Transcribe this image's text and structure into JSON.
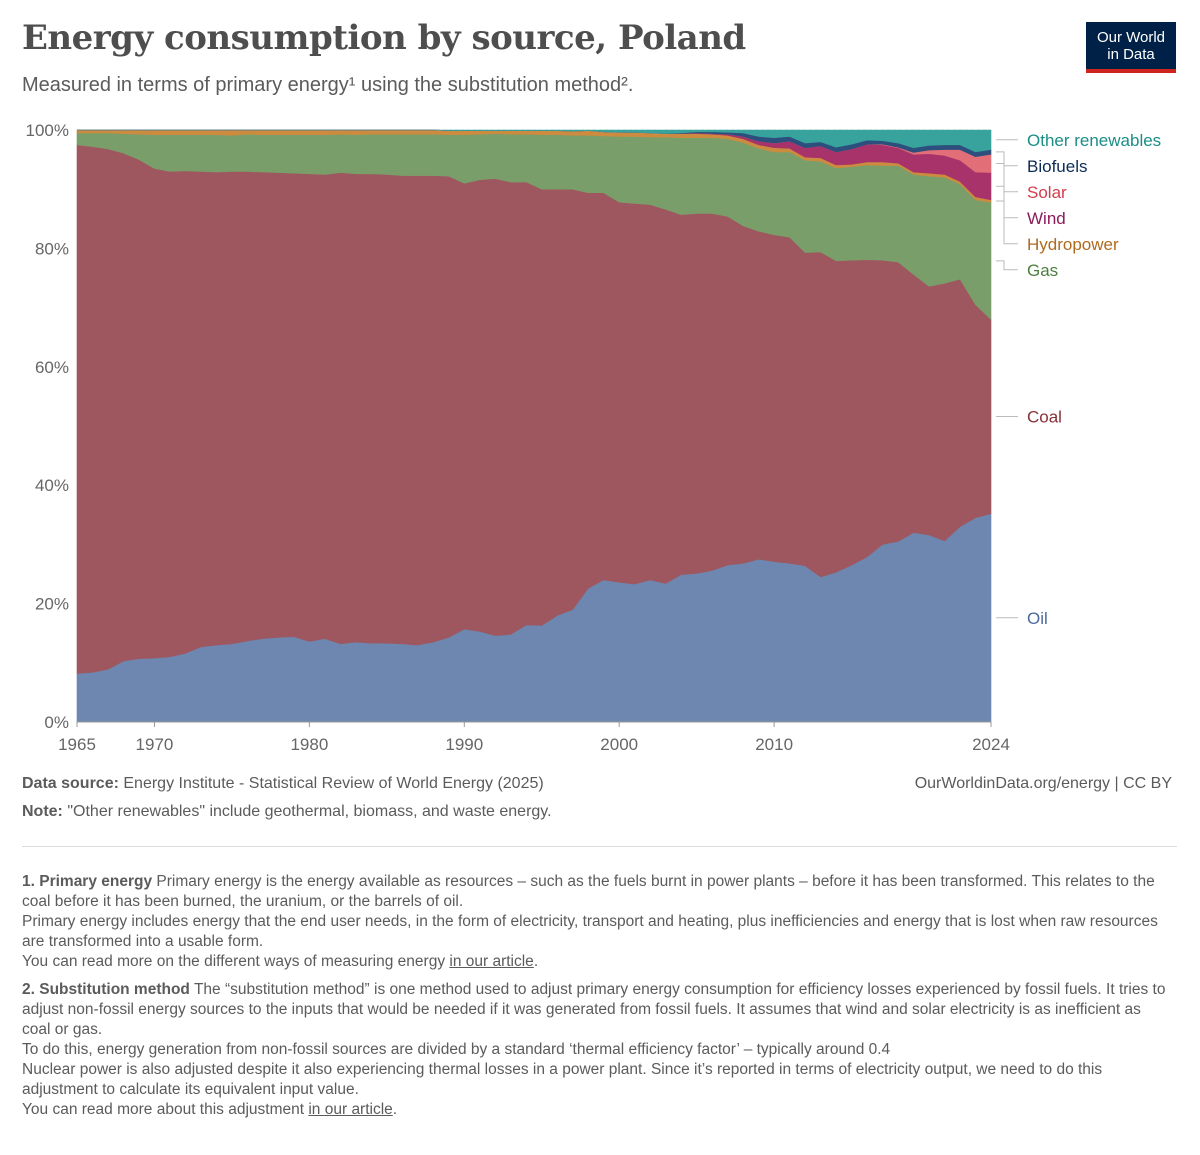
{
  "header": {
    "title": "Energy consumption by source, Poland",
    "subtitle": "Measured in terms of primary energy¹ using the substitution method².",
    "logo_line1": "Our World",
    "logo_line2": "in Data"
  },
  "footer": {
    "source_label": "Data source:",
    "source_text": "Energy Institute - Statistical Review of World Energy (2025)",
    "url_text": "OurWorldinData.org/energy | CC BY",
    "note_label": "Note:",
    "note_text": "\"Other renewables\" include geothermal, biomass, and waste energy."
  },
  "footnotes": {
    "fn1": {
      "head": "1. Primary energy",
      "lead": "Primary energy is the energy available as resources – such as the fuels burnt in power plants – before it has been transformed. This relates to the coal before it has been burned, the uranium, or the barrels of oil.",
      "line2": "Primary energy includes energy that the end user needs, in the form of electricity, transport and heating, plus inefficiencies and energy that is lost when raw resources are transformed into a usable form.",
      "line3_pre": "You can read more on the different ways of measuring energy ",
      "line3_link": "in our article",
      "line3_post": "."
    },
    "fn2": {
      "head": "2. Substitution method",
      "lead": "The “substitution method” is one method used to adjust primary energy consumption for efficiency losses experienced by fossil fuels. It tries to adjust non-fossil energy sources to the inputs that would be needed if it was generated from fossil fuels. It assumes that wind and solar electricity is as inefficient as coal or gas.",
      "line2": "To do this, energy generation from non-fossil sources are divided by a standard ‘thermal efficiency factor’ – typically around 0.4",
      "line3": "Nuclear power is also adjusted despite it also experiencing thermal losses in a power plant. Since it’s reported in terms of electricity output, we need to do this adjustment to calculate its equivalent input value.",
      "line4_pre": "You can read more about this adjustment ",
      "line4_link": "in our article",
      "line4_post": "."
    }
  },
  "chart_data": {
    "type": "area",
    "stacked": true,
    "normalized_percent": true,
    "x": [
      1965,
      1966,
      1967,
      1968,
      1969,
      1970,
      1971,
      1972,
      1973,
      1974,
      1975,
      1976,
      1977,
      1978,
      1979,
      1980,
      1981,
      1982,
      1983,
      1984,
      1985,
      1986,
      1987,
      1988,
      1989,
      1990,
      1991,
      1992,
      1993,
      1994,
      1995,
      1996,
      1997,
      1998,
      1999,
      2000,
      2001,
      2002,
      2003,
      2004,
      2005,
      2006,
      2007,
      2008,
      2009,
      2010,
      2011,
      2012,
      2013,
      2014,
      2015,
      2016,
      2017,
      2018,
      2019,
      2020,
      2021,
      2022,
      2023,
      2024
    ],
    "x_ticks": [
      1965,
      1970,
      1980,
      1990,
      2000,
      2010,
      2024
    ],
    "y_ticks": [
      "0%",
      "20%",
      "40%",
      "60%",
      "80%",
      "100%"
    ],
    "ylim": [
      0,
      100
    ],
    "grid": "horizontal",
    "legend": "right",
    "series": [
      {
        "name": "Oil",
        "color": "#6d87b0",
        "label_color": "#4c6a9c",
        "values": [
          8.2,
          8.4,
          8.9,
          10.3,
          10.7,
          10.8,
          11.0,
          11.6,
          12.7,
          13.0,
          13.2,
          13.7,
          14.1,
          14.3,
          14.4,
          13.6,
          14.1,
          13.2,
          13.5,
          13.3,
          13.3,
          13.2,
          13.0,
          13.5,
          14.3,
          15.7,
          15.3,
          14.6,
          14.8,
          16.4,
          16.3,
          18.0,
          19.0,
          22.6,
          24.0,
          23.6,
          23.3,
          24.0,
          23.4,
          24.9,
          25.1,
          25.6,
          26.5,
          26.8,
          27.5,
          27.1,
          26.8,
          26.4,
          24.5,
          25.3,
          26.5,
          27.9,
          30.0,
          30.5,
          32.0,
          31.6,
          30.6,
          33.0,
          34.5,
          35.2
        ]
      },
      {
        "name": "Coal",
        "color": "#9e575f",
        "label_color": "#883039",
        "values": [
          89.3,
          88.8,
          87.9,
          85.8,
          84.3,
          82.7,
          82.0,
          81.5,
          80.3,
          79.9,
          79.8,
          79.3,
          78.8,
          78.5,
          78.3,
          79.0,
          78.4,
          79.6,
          79.1,
          79.3,
          79.2,
          79.1,
          79.3,
          78.8,
          77.9,
          75.3,
          76.3,
          77.2,
          76.4,
          74.9,
          73.7,
          72.0,
          71.0,
          66.8,
          65.4,
          64.2,
          64.3,
          63.4,
          63.2,
          60.8,
          60.8,
          60.3,
          58.9,
          57.0,
          55.4,
          55.2,
          55.1,
          52.9,
          54.9,
          52.6,
          51.5,
          50.2,
          48.0,
          47.2,
          43.6,
          42.0,
          43.5,
          41.8,
          36.0,
          32.8
        ]
      },
      {
        "name": "Gas",
        "color": "#7a9e6a",
        "label_color": "#4c7e3f",
        "values": [
          2.0,
          2.3,
          2.7,
          3.3,
          4.3,
          5.7,
          6.2,
          6.1,
          6.2,
          6.3,
          6.1,
          6.3,
          6.3,
          6.4,
          6.5,
          6.6,
          6.7,
          6.5,
          6.6,
          6.7,
          6.8,
          7.0,
          7.0,
          7.0,
          7.0,
          8.2,
          7.7,
          7.6,
          8.1,
          8.1,
          9.2,
          9.2,
          9.1,
          9.7,
          9.6,
          11.1,
          11.3,
          11.4,
          12.2,
          13.0,
          12.8,
          12.8,
          13.1,
          14.1,
          14.0,
          14.0,
          14.4,
          15.6,
          15.3,
          15.7,
          15.8,
          16.0,
          16.0,
          16.3,
          16.9,
          18.6,
          17.9,
          16.1,
          17.7,
          19.8
        ]
      },
      {
        "name": "Hydropower",
        "color": "#cc8b3f",
        "label_color": "#b06a1e",
        "values": [
          0.5,
          0.5,
          0.5,
          0.6,
          0.7,
          0.8,
          0.8,
          0.8,
          0.8,
          0.8,
          0.9,
          0.7,
          0.8,
          0.8,
          0.8,
          0.8,
          0.8,
          0.7,
          0.8,
          0.7,
          0.7,
          0.7,
          0.7,
          0.7,
          0.7,
          0.7,
          0.6,
          0.5,
          0.6,
          0.6,
          0.7,
          0.7,
          0.7,
          0.8,
          0.7,
          0.7,
          0.7,
          0.7,
          0.6,
          0.7,
          0.7,
          0.6,
          0.6,
          0.6,
          0.6,
          0.7,
          0.6,
          0.5,
          0.6,
          0.5,
          0.4,
          0.5,
          0.6,
          0.4,
          0.4,
          0.5,
          0.5,
          0.4,
          0.5,
          0.4
        ]
      },
      {
        "name": "Wind",
        "color": "#a8326a",
        "label_color": "#8c1b5a",
        "values": [
          0,
          0,
          0,
          0,
          0,
          0,
          0,
          0,
          0,
          0,
          0,
          0,
          0,
          0,
          0,
          0,
          0,
          0,
          0,
          0,
          0,
          0,
          0,
          0,
          0,
          0,
          0,
          0,
          0,
          0,
          0,
          0,
          0,
          0,
          0,
          0,
          0,
          0,
          0,
          0,
          0.1,
          0.1,
          0.2,
          0.4,
          0.6,
          0.8,
          1.2,
          1.6,
          2.0,
          2.2,
          2.6,
          3.0,
          2.9,
          2.6,
          3.0,
          3.3,
          3.2,
          3.6,
          4.2,
          4.6
        ]
      },
      {
        "name": "Solar",
        "color": "#e26e78",
        "label_color": "#d33c4c",
        "values": [
          0,
          0,
          0,
          0,
          0,
          0,
          0,
          0,
          0,
          0,
          0,
          0,
          0,
          0,
          0,
          0,
          0,
          0,
          0,
          0,
          0,
          0,
          0,
          0,
          0,
          0,
          0,
          0,
          0,
          0,
          0,
          0,
          0,
          0,
          0,
          0,
          0,
          0,
          0,
          0,
          0,
          0,
          0,
          0,
          0,
          0,
          0,
          0,
          0,
          0,
          0,
          0,
          0.1,
          0.1,
          0.3,
          0.6,
          1.0,
          1.8,
          2.6,
          3.1
        ]
      },
      {
        "name": "Biofuels",
        "color": "#2c4f7d",
        "label_color": "#0d2b57",
        "values": [
          0,
          0,
          0,
          0,
          0,
          0,
          0,
          0,
          0,
          0,
          0,
          0,
          0,
          0,
          0,
          0,
          0,
          0,
          0,
          0,
          0,
          0,
          0,
          0,
          0,
          0,
          0,
          0,
          0,
          0,
          0,
          0,
          0,
          0,
          0,
          0,
          0,
          0,
          0,
          0.1,
          0.2,
          0.3,
          0.3,
          0.6,
          0.8,
          0.9,
          0.8,
          0.8,
          0.7,
          0.8,
          0.8,
          0.7,
          0.6,
          0.7,
          0.8,
          0.8,
          0.8,
          0.8,
          0.8,
          0.8
        ]
      },
      {
        "name": "Other renewables",
        "color": "#38a39c",
        "label_color": "#1b8d86",
        "values": [
          0,
          0,
          0,
          0,
          0,
          0,
          0,
          0,
          0,
          0,
          0,
          0,
          0,
          0,
          0,
          0,
          0,
          0,
          0,
          0,
          0,
          0,
          0,
          0,
          0.1,
          0.1,
          0.1,
          0.1,
          0.1,
          0.1,
          0.1,
          0.1,
          0.2,
          0.1,
          0.3,
          0.4,
          0.4,
          0.5,
          0.6,
          0.5,
          0.3,
          0.3,
          0.4,
          0.5,
          1.1,
          1.3,
          1.1,
          2.2,
          2.0,
          2.9,
          2.4,
          1.7,
          1.8,
          2.2,
          3.0,
          2.6,
          2.5,
          2.5,
          3.7,
          3.3
        ]
      }
    ]
  }
}
